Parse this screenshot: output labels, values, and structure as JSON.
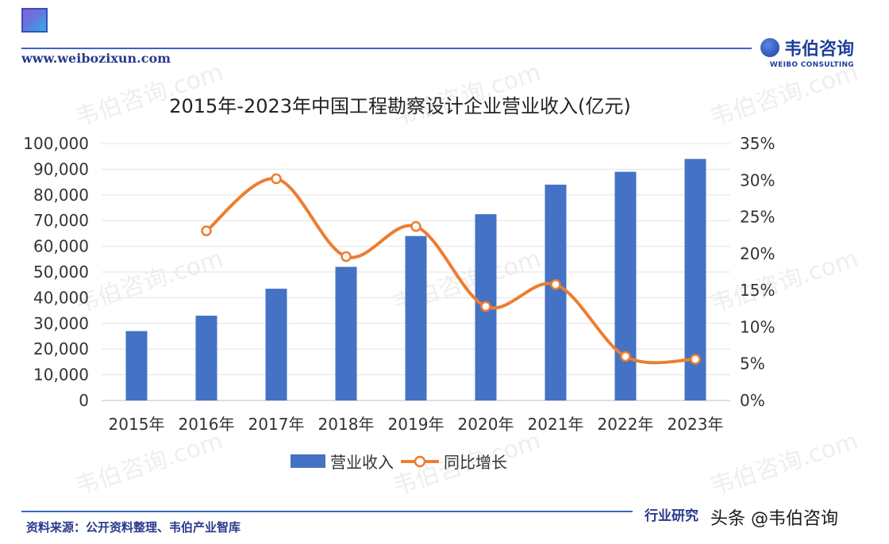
{
  "header": {
    "site_url": "www.weibozixun.com",
    "brand_name": "韦伯咨询",
    "brand_sub": "WEIBO CONSULTING"
  },
  "watermark_text": "韦伯咨询.com",
  "footer": {
    "source": "资料来源：公开资料整理、韦伯产业智库",
    "right_text": "行业研究",
    "credit": "头条 @韦伯咨询"
  },
  "colors": {
    "bar": "#4472c4",
    "line": "#ed7d31",
    "accent": "#3d63c9"
  },
  "chart_data": {
    "type": "bar",
    "title": "2015年-2023年中国工程勘察设计企业营业收入(亿元)",
    "categories": [
      "2015年",
      "2016年",
      "2017年",
      "2018年",
      "2019年",
      "2020年",
      "2021年",
      "2022年",
      "2023年"
    ],
    "series": [
      {
        "name": "营业收入",
        "type": "bar",
        "axis": "left",
        "values": [
          27000,
          33000,
          43500,
          52000,
          64000,
          72500,
          84000,
          89000,
          94000
        ]
      },
      {
        "name": "同比增长",
        "type": "line",
        "axis": "right",
        "values": [
          null,
          23.1,
          30.2,
          19.6,
          23.7,
          12.8,
          15.8,
          6.0,
          5.6
        ]
      }
    ],
    "y_left": {
      "min": 0,
      "max": 100000,
      "step": 10000,
      "ticks": [
        "0",
        "10,000",
        "20,000",
        "30,000",
        "40,000",
        "50,000",
        "60,000",
        "70,000",
        "80,000",
        "90,000",
        "100,000"
      ]
    },
    "y_right": {
      "min": 0,
      "max": 35,
      "step": 5,
      "ticks": [
        "0%",
        "5%",
        "10%",
        "15%",
        "20%",
        "25%",
        "30%",
        "35%"
      ]
    },
    "grid": true,
    "legend": "bottom"
  }
}
